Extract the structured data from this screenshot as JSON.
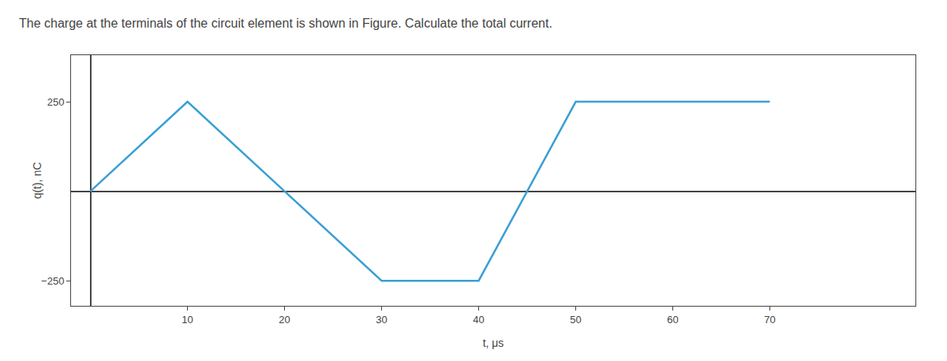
{
  "chart_data": {
    "type": "line",
    "title": "The charge at the terminals of the circuit element is shown in Figure. Calculate the total current.",
    "xlabel": "t, μs",
    "ylabel": "q(t), nC",
    "x": [
      0,
      10,
      20,
      30,
      40,
      50,
      60,
      70
    ],
    "values": [
      0,
      250,
      0,
      -250,
      -250,
      250,
      250,
      250
    ],
    "color": "#3a9fd5",
    "xlim": [
      -2,
      85
    ],
    "ylim": [
      -320,
      380
    ],
    "xticks": [
      10,
      20,
      30,
      40,
      50,
      60,
      70
    ],
    "yticks": [
      {
        "value": -250,
        "label": "−250"
      },
      250
    ],
    "grid": false
  }
}
